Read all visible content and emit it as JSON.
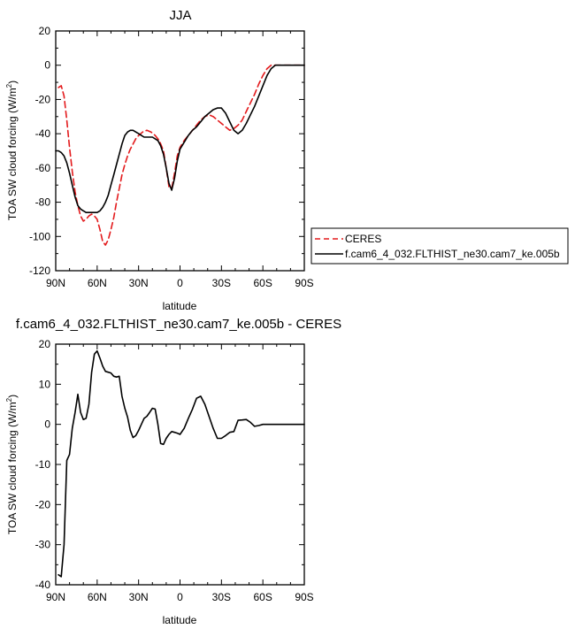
{
  "colors": {
    "model": "#000000",
    "obs": "#e31a1c",
    "axis": "#000000"
  },
  "chart_data": [
    {
      "type": "line",
      "title": "JJA",
      "xlabel": "latitude",
      "ylabel_main": "TOA SW cloud forcing (W/m",
      "ylabel_sup": "2",
      "ylabel_close": ")",
      "xlim": [
        90,
        -90
      ],
      "ylim": [
        -120,
        20
      ],
      "xticks": [
        90,
        60,
        30,
        0,
        -30,
        -60,
        -90
      ],
      "xticklabels": [
        "90N",
        "60N",
        "30N",
        "0",
        "30S",
        "60S",
        "90S"
      ],
      "yticks": [
        20,
        0,
        -20,
        -40,
        -60,
        -80,
        -100,
        -120
      ],
      "yticklabels": [
        "20",
        "0",
        "-20",
        "-40",
        "-60",
        "-80",
        "-100",
        "-120"
      ],
      "legend": {
        "placement": "right-outside",
        "entries": [
          {
            "label": "CERES",
            "style": "dashed",
            "color": "#e31a1c"
          },
          {
            "label": "f.cam6_4_032.FLTHIST_ne30.cam7_ke.005b",
            "style": "solid",
            "color": "#000000"
          }
        ]
      },
      "series": [
        {
          "name": "CERES",
          "style": "dashed",
          "color": "#e31a1c",
          "x": [
            88,
            86,
            84,
            82,
            80,
            78,
            76,
            74,
            72,
            70,
            68,
            66,
            64,
            62,
            60,
            58,
            56,
            54,
            52,
            50,
            48,
            46,
            44,
            42,
            40,
            38,
            36,
            34,
            32,
            30,
            27,
            24,
            21,
            18,
            15,
            12,
            10,
            8,
            6,
            4,
            2,
            0,
            -3,
            -6,
            -9,
            -12,
            -15,
            -18,
            -21,
            -24,
            -27,
            -30,
            -33,
            -36,
            -39,
            -42,
            -45,
            -48,
            -51,
            -54,
            -57,
            -60,
            -63,
            -66,
            -69,
            -72,
            -75,
            -78,
            -81,
            -84,
            -87,
            -90
          ],
          "y": [
            -13,
            -12,
            -18,
            -32,
            -48,
            -62,
            -74,
            -82,
            -88,
            -91,
            -90,
            -88,
            -87,
            -88,
            -90,
            -96,
            -103,
            -105,
            -102,
            -96,
            -89,
            -80,
            -72,
            -64,
            -58,
            -53,
            -49,
            -46,
            -43,
            -41,
            -39,
            -38,
            -39,
            -41,
            -44,
            -50,
            -60,
            -71,
            -72,
            -63,
            -53,
            -48,
            -44,
            -41,
            -38,
            -35,
            -32,
            -30,
            -29,
            -30,
            -32,
            -34,
            -36,
            -38,
            -37,
            -35,
            -32,
            -27,
            -22,
            -17,
            -11,
            -6,
            -2,
            0,
            0,
            0,
            0,
            0,
            0,
            0,
            0,
            0
          ]
        },
        {
          "name": "f.cam6_4_032.FLTHIST_ne30.cam7_ke.005b",
          "style": "solid",
          "color": "#000000",
          "x": [
            90,
            88,
            86,
            84,
            82,
            80,
            78,
            76,
            74,
            72,
            70,
            68,
            66,
            64,
            62,
            60,
            58,
            56,
            54,
            52,
            50,
            48,
            46,
            44,
            42,
            40,
            38,
            36,
            34,
            32,
            30,
            28,
            26,
            24,
            22,
            20,
            18,
            16,
            14,
            12,
            10,
            8,
            6,
            4,
            2,
            0,
            -3,
            -6,
            -9,
            -12,
            -15,
            -18,
            -21,
            -24,
            -27,
            -30,
            -33,
            -36,
            -39,
            -42,
            -45,
            -48,
            -51,
            -54,
            -57,
            -60,
            -63,
            -66,
            -69,
            -72,
            -75,
            -78,
            -81,
            -84,
            -87,
            -90
          ],
          "y": [
            -50,
            -50,
            -51,
            -53,
            -57,
            -63,
            -70,
            -77,
            -82,
            -84,
            -85,
            -86,
            -86,
            -86,
            -86,
            -86,
            -85,
            -83,
            -80,
            -76,
            -70,
            -64,
            -58,
            -52,
            -46,
            -41,
            -39,
            -38,
            -38,
            -39,
            -40,
            -41,
            -42,
            -42,
            -42,
            -42,
            -43,
            -44,
            -47,
            -52,
            -60,
            -69,
            -73,
            -66,
            -56,
            -49,
            -45,
            -41,
            -38,
            -36,
            -33,
            -30,
            -28,
            -26,
            -25,
            -25,
            -28,
            -33,
            -38,
            -40,
            -38,
            -34,
            -29,
            -24,
            -18,
            -12,
            -6,
            -2,
            0,
            0,
            0,
            0,
            0,
            0,
            0,
            0
          ]
        }
      ]
    },
    {
      "type": "line",
      "title": "f.cam6_4_032.FLTHIST_ne30.cam7_ke.005b - CERES",
      "xlabel": "latitude",
      "ylabel_main": "TOA SW cloud forcing (W/m",
      "ylabel_sup": "2",
      "ylabel_close": ")",
      "xlim": [
        90,
        -90
      ],
      "ylim": [
        -40,
        20
      ],
      "xticks": [
        90,
        60,
        30,
        0,
        -30,
        -60,
        -90
      ],
      "xticklabels": [
        "90N",
        "60N",
        "30N",
        "0",
        "30S",
        "60S",
        "90S"
      ],
      "yticks": [
        20,
        10,
        0,
        -10,
        -20,
        -30,
        -40
      ],
      "yticklabels": [
        "20",
        "10",
        "0",
        "-10",
        "-20",
        "-30",
        "-40"
      ],
      "series": [
        {
          "style": "solid",
          "color": "#000000",
          "x": [
            88,
            86,
            84,
            82,
            80,
            78,
            76,
            74,
            72,
            70,
            68,
            66,
            64,
            62,
            60,
            58,
            56,
            54,
            52,
            50,
            48,
            46,
            44,
            42,
            40,
            38,
            36,
            34,
            32,
            30,
            28,
            26,
            24,
            22,
            20,
            18,
            16,
            14,
            12,
            10,
            8,
            6,
            4,
            2,
            0,
            -3,
            -6,
            -9,
            -12,
            -15,
            -18,
            -21,
            -24,
            -27,
            -30,
            -33,
            -36,
            -39,
            -42,
            -45,
            -48,
            -51,
            -54,
            -57,
            -60,
            -63,
            -66,
            -69,
            -72,
            -75,
            -78,
            -81,
            -84,
            -87,
            -90
          ],
          "y": [
            -37.5,
            -38,
            -30,
            -9,
            -7.5,
            -1,
            3,
            7.5,
            3,
            1.2,
            1.5,
            5,
            13,
            17.5,
            18.3,
            16.5,
            14.5,
            13.2,
            13,
            12.8,
            12,
            11.8,
            12,
            7,
            4,
            1.8,
            -1.5,
            -3.3,
            -2.8,
            -1.5,
            0,
            1.5,
            2,
            3,
            4,
            3.8,
            0,
            -4.8,
            -5,
            -3.5,
            -2.5,
            -1.8,
            -2,
            -2.2,
            -2.5,
            -1,
            1.5,
            3.8,
            6.5,
            7,
            5,
            2,
            -1,
            -3.5,
            -3.5,
            -2.8,
            -2,
            -1.8,
            1,
            1.1,
            1.2,
            0.5,
            -0.5,
            -0.3,
            0,
            0,
            0,
            0,
            0,
            0,
            0,
            0,
            0,
            0,
            0
          ]
        }
      ]
    }
  ]
}
